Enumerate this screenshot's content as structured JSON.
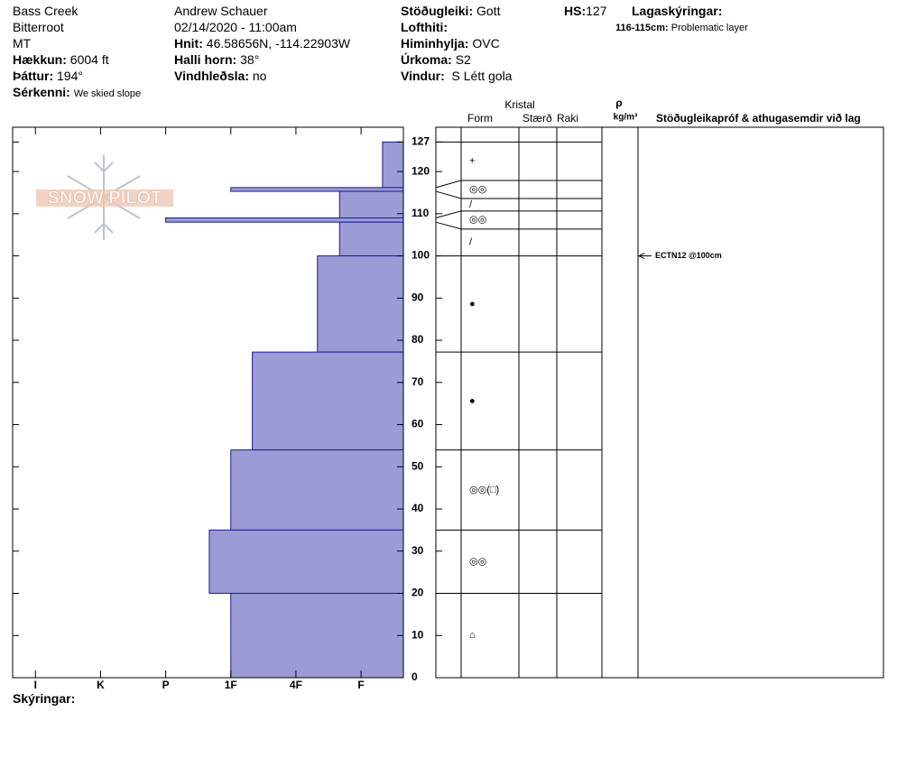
{
  "header": {
    "site": "Bass Creek",
    "range": "Bitterroot",
    "state": "MT",
    "elevation": {
      "label": "Hækkun:",
      "value": "6004 ft"
    },
    "aspect": {
      "label": "Þáttur:",
      "value": "194°"
    },
    "features": {
      "label": "Sérkenni:",
      "value": "We skied slope"
    },
    "observer": "Andrew Schauer",
    "datetime": "02/14/2020 - 11:00am",
    "coords": {
      "label": "Hnit:",
      "value": "46.58656N, -114.22903W"
    },
    "slope": {
      "label": "Halli horn:",
      "value": "38°"
    },
    "wind_loading": {
      "label": "Vindhleðsla:",
      "value": "no"
    },
    "stability": {
      "label": "Stöðugleiki:",
      "value": "Gott"
    },
    "air_temp": {
      "label": "Lofthiti:"
    },
    "sky": {
      "label": "Himinhylja:",
      "value": "OVC"
    },
    "precip": {
      "label": "Úrkoma:",
      "value": "S2"
    },
    "wind": {
      "label": "Vindur:",
      "value": "S Létt gola"
    },
    "hs": {
      "label": "HS:",
      "value": 127
    },
    "legend_title": "Lagaskýringar:",
    "layer_notes": [
      {
        "label": "116-115cm:",
        "text": "Problematic layer"
      }
    ],
    "comments_label": "Skýringar:"
  },
  "chart_data": {
    "type": "snow-profile",
    "logo": "SNOW PILOT",
    "color": "#9b9bd6",
    "edge_color": "#1a1a9a",
    "ylim": [
      0,
      130.5
    ],
    "yticks": [
      0,
      10,
      20,
      30,
      40,
      50,
      60,
      70,
      80,
      90,
      100,
      110,
      120,
      127
    ],
    "xlim": [
      6.35,
      0.35
    ],
    "xticks": [
      {
        "value": 6,
        "label": "I"
      },
      {
        "value": 5,
        "label": "K"
      },
      {
        "value": 4,
        "label": "P"
      },
      {
        "value": 3,
        "label": "1F"
      },
      {
        "value": 2,
        "label": "4F"
      },
      {
        "value": 1,
        "label": "F"
      }
    ],
    "table_headers": {
      "crystal": "Kristal",
      "form": "Form",
      "size": "Stærð",
      "moisture": "Raki",
      "density_symbol": "ρ",
      "density_unit": "kg/m³",
      "stability": "Stöðugleikapróf & athugasemdir við lag"
    },
    "layers": [
      {
        "top": 127,
        "bottom": 116.2,
        "hardness": 0.67,
        "form": "+"
      },
      {
        "top": 116.2,
        "bottom": 115.3,
        "hardness": 3,
        "form": "◎◎"
      },
      {
        "top": 115.3,
        "bottom": 109,
        "hardness": 1.33,
        "form": "/"
      },
      {
        "top": 109,
        "bottom": 108,
        "hardness": 4,
        "form": "◎◎"
      },
      {
        "top": 108,
        "bottom": 100,
        "hardness": 1.33,
        "form": "/"
      },
      {
        "top": 100,
        "bottom": 77.2,
        "hardness": 1.67,
        "form": "●"
      },
      {
        "top": 77.2,
        "bottom": 54,
        "hardness": 2.67,
        "form": "●"
      },
      {
        "top": 54,
        "bottom": 35,
        "hardness": 3,
        "form": "◎◎(□)"
      },
      {
        "top": 35,
        "bottom": 20,
        "hardness": 3.33,
        "form": "◎◎"
      },
      {
        "top": 20,
        "bottom": 0,
        "hardness": 3,
        "form": "⌂"
      }
    ],
    "stability_tests": [
      {
        "depth": 100,
        "label": "ECTN12 @100cm"
      }
    ]
  }
}
